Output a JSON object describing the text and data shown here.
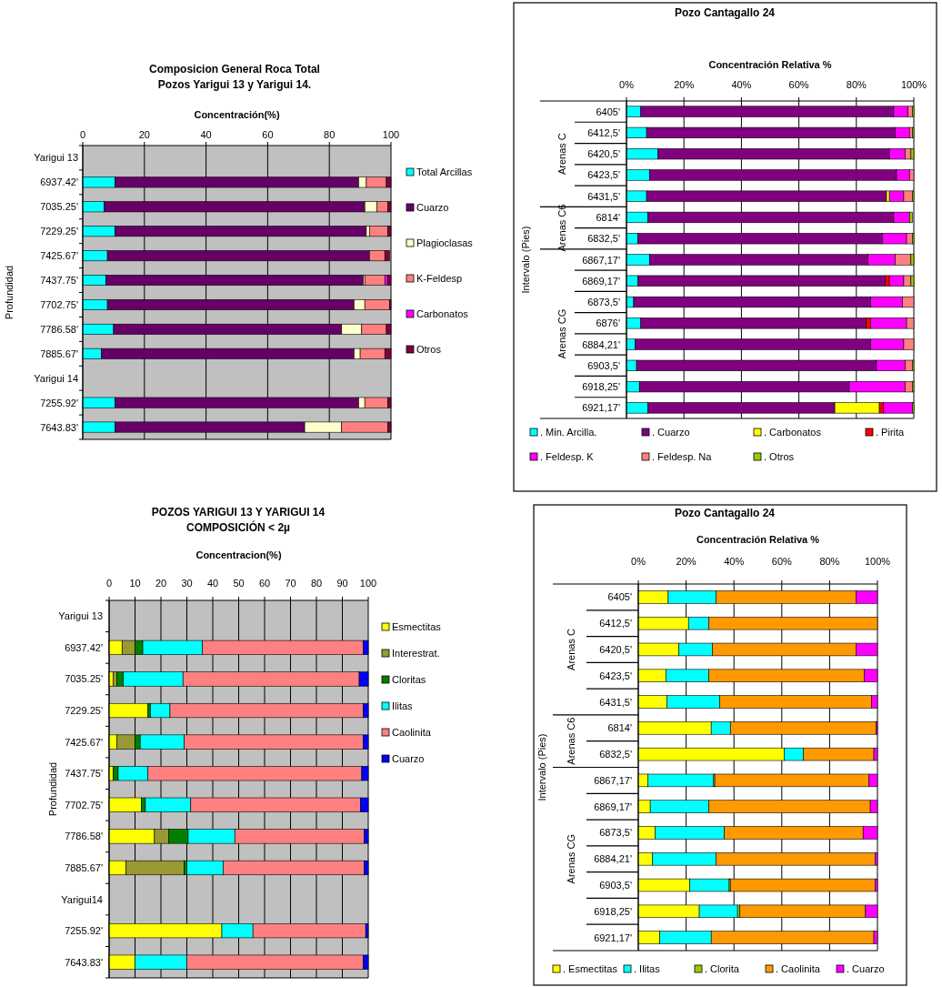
{
  "chart_data": [
    {
      "type": "bar",
      "orientation": "horizontal",
      "stacked": true,
      "title": "Composicion General Roca Total",
      "subtitle": "Pozos Yarigui 13 y Yarigui 14.",
      "xlabel": "Concentración(%)",
      "ylabel": "Profundidad",
      "categories": [
        "Yarigui 13",
        "6937.42'",
        "7035.25'",
        "7229.25'",
        "7425.67'",
        "7437.75'",
        "7702.75'",
        "7786.58'",
        "7885.67'",
        "Yarigui 14",
        "7255.92'",
        "7643.83'"
      ],
      "xlim": [
        0,
        100
      ],
      "xticks": [
        0,
        20,
        40,
        60,
        80,
        100
      ],
      "grid": "x",
      "legend": "right",
      "series": [
        {
          "name": "Total Arcillas",
          "color": "#00ffff",
          "values": [
            null,
            10.5,
            7,
            10.5,
            8,
            7.5,
            8,
            10,
            6,
            null,
            10.5,
            10.5
          ]
        },
        {
          "name": "Cuarzo",
          "color": "#660066",
          "values": [
            null,
            79,
            84.5,
            81.5,
            85,
            83.5,
            80,
            74,
            82,
            null,
            79,
            61.5
          ]
        },
        {
          "name": "Plagioclasas",
          "color": "#ffffcc",
          "values": [
            null,
            2.5,
            4,
            1,
            0,
            0.5,
            3.5,
            6.5,
            2,
            null,
            2,
            12
          ]
        },
        {
          "name": "K-Feldesp",
          "color": "#ff8080",
          "values": [
            null,
            6.5,
            3.5,
            6,
            5,
            6.5,
            8,
            8,
            8,
            null,
            7.5,
            15
          ]
        },
        {
          "name": "Carbonatos",
          "color": "#ff00ff",
          "values": [
            null,
            0,
            0,
            0,
            0,
            1,
            0,
            0,
            0,
            null,
            0,
            0
          ]
        },
        {
          "name": "Otros",
          "color": "#800040",
          "values": [
            null,
            1.5,
            1,
            1,
            1.5,
            1,
            0.5,
            1.5,
            2,
            null,
            1,
            1
          ]
        }
      ]
    },
    {
      "type": "bar",
      "orientation": "horizontal",
      "stacked": true,
      "title": "Pozo Cantagallo 24",
      "xlabel": "Concentración Relativa %",
      "ylabel": "Intervalo (Pies)",
      "categories": [
        "6405'",
        "6412,5'",
        "6420,5'",
        "6423,5'",
        "6431,5'",
        "6814'",
        "6832,5'",
        "6867,17'",
        "6869,17'",
        "6873,5'",
        "6876'",
        "6884,21'",
        "6903,5'",
        "6918,25'",
        "6921,17'"
      ],
      "xlim": [
        0,
        100
      ],
      "xticks": [
        {
          "value": 0,
          "label": "0%"
        },
        {
          "value": 20,
          "label": "20%"
        },
        {
          "value": 40,
          "label": "40%"
        },
        {
          "value": 60,
          "label": "60%"
        },
        {
          "value": 80,
          "label": "80%"
        },
        {
          "value": 100,
          "label": "100%"
        }
      ],
      "grid": "x",
      "legend": "bottom",
      "annotations": [
        "Arenas C",
        "Arenas C6",
        "Arenas CG"
      ],
      "series": [
        {
          "name": ". Min. Arcilla.",
          "color": "#00ffff",
          "values": [
            5,
            7,
            11,
            8,
            7,
            7.5,
            4,
            8,
            4,
            2.5,
            5,
            3,
            3.5,
            4.5,
            7.5
          ]
        },
        {
          "name": ". Cuarzo",
          "color": "#800080",
          "values": [
            88,
            86.5,
            80.5,
            86,
            83.5,
            85.5,
            85,
            76,
            86,
            82.5,
            78.5,
            82,
            83.5,
            73,
            65
          ]
        },
        {
          "name": ". Carbonatos",
          "color": "#ffff00",
          "values": [
            0,
            0,
            0,
            0,
            1,
            0,
            0,
            0,
            0,
            0,
            0,
            0,
            0,
            0,
            15.5
          ]
        },
        {
          "name": ". Pirita",
          "color": "#ff0000",
          "values": [
            0,
            0,
            0,
            0,
            0,
            0,
            0,
            0,
            1.5,
            0,
            1.5,
            0,
            0,
            0,
            1.5
          ]
        },
        {
          "name": ". Feldesp. K",
          "color": "#ff00ff",
          "values": [
            5,
            5,
            5.5,
            4.5,
            5,
            5.5,
            8.5,
            9.5,
            5,
            11,
            12.5,
            11.5,
            10,
            19.5,
            10
          ]
        },
        {
          "name": ". Feldesp. Na",
          "color": "#ff8080",
          "values": [
            1.5,
            1,
            2,
            1.5,
            3,
            0,
            2,
            5.5,
            2.5,
            4,
            2.5,
            3.5,
            2.5,
            2.5,
            0
          ]
        },
        {
          "name": ". Otros",
          "color": "#99cc00",
          "values": [
            0.5,
            0.5,
            1,
            0,
            0.5,
            1,
            0.5,
            1,
            1,
            0,
            0,
            0,
            0.5,
            0.5,
            0.5
          ]
        }
      ]
    },
    {
      "type": "bar",
      "orientation": "horizontal",
      "stacked": true,
      "title": "POZOS YARIGUI 13 Y YARIGUI 14",
      "subtitle": "COMPOSICIÓN < 2µ",
      "xlabel": "Concentracion(%)",
      "ylabel": "Profundidad",
      "categories": [
        "Yarigui 13",
        "6937.42'",
        "7035.25'",
        "7229.25'",
        "7425.67'",
        "7437.75'",
        "7702.75'",
        "7786.58'",
        "7885.67'",
        "Yarigui14",
        "7255.92'",
        "7643.83'"
      ],
      "xlim": [
        0,
        100
      ],
      "xticks": [
        0,
        10,
        20,
        30,
        40,
        50,
        60,
        70,
        80,
        90,
        100
      ],
      "grid": "x",
      "legend": "right",
      "series": [
        {
          "name": "Esmectitas",
          "color": "#ffff00",
          "values": [
            null,
            5,
            1.5,
            15,
            3,
            1.5,
            12.5,
            17.5,
            6.5,
            null,
            43.5,
            10
          ]
        },
        {
          "name": "Interestrat.",
          "color": "#999933",
          "values": [
            null,
            5,
            1.5,
            0,
            7,
            0,
            0,
            5.5,
            22.5,
            null,
            0,
            0
          ]
        },
        {
          "name": "Cloritas",
          "color": "#008000",
          "values": [
            null,
            3,
            2.5,
            1,
            2,
            2,
            1.5,
            7.5,
            1,
            null,
            0,
            0
          ]
        },
        {
          "name": "Ilitas",
          "color": "#00ffff",
          "values": [
            null,
            23,
            23,
            7.5,
            17,
            11.5,
            17.5,
            18,
            14,
            null,
            12,
            20
          ]
        },
        {
          "name": "Caolinita",
          "color": "#ff8080",
          "values": [
            null,
            62,
            68,
            74.5,
            69,
            82.5,
            65.5,
            50,
            54.5,
            null,
            43.5,
            68
          ]
        },
        {
          "name": "Cuarzo",
          "color": "#0000ff",
          "values": [
            null,
            2,
            3.5,
            2,
            2,
            2.5,
            3,
            1.5,
            1.5,
            null,
            1,
            2
          ]
        }
      ]
    },
    {
      "type": "bar",
      "orientation": "horizontal",
      "stacked": true,
      "title": "Pozo Cantagallo 24",
      "xlabel": "Concentración Relativa %",
      "ylabel": "Intervalo (Pies)",
      "categories": [
        "6405'",
        "6412,5'",
        "6420,5'",
        "6423,5'",
        "6431,5'",
        "6814'",
        "6832,5'",
        "6867,17'",
        "6869,17'",
        "6873,5'",
        "6884,21'",
        "6903,5'",
        "6918,25'",
        "6921,17'"
      ],
      "xlim": [
        0,
        100
      ],
      "xticks": [
        {
          "value": 0,
          "label": "0%"
        },
        {
          "value": 20,
          "label": "20%"
        },
        {
          "value": 40,
          "label": "40%"
        },
        {
          "value": 60,
          "label": "60%"
        },
        {
          "value": 80,
          "label": "80%"
        },
        {
          "value": 100,
          "label": "100%"
        }
      ],
      "grid": "x",
      "legend": "bottom",
      "annotations": [
        "Arenas C",
        "Arenas C6",
        "Arenas CG"
      ],
      "series": [
        {
          "name": ". Esmectitas",
          "color": "#ffff00",
          "values": [
            12.5,
            21,
            17,
            11.5,
            12,
            30.5,
            61,
            4,
            5,
            7,
            6,
            21.5,
            25.5,
            9
          ]
        },
        {
          "name": ". Ilitas",
          "color": "#00ffff",
          "values": [
            20,
            8.5,
            14,
            18,
            22,
            8,
            8,
            27.5,
            24.5,
            29,
            26.5,
            16.5,
            16,
            21.5
          ]
        },
        {
          "name": ". Clorita",
          "color": "#99cc00",
          "values": [
            0,
            0,
            0,
            0,
            0,
            0,
            0,
            0.5,
            0,
            0,
            0,
            0.5,
            1,
            0
          ]
        },
        {
          "name": ". Caolinita",
          "color": "#ff9900",
          "values": [
            58.5,
            70.5,
            60,
            65,
            63.5,
            61,
            29.5,
            64.5,
            67.5,
            58,
            66.5,
            60.5,
            52.5,
            68
          ]
        },
        {
          "name": ". Cuarzo",
          "color": "#ff00ff",
          "values": [
            9,
            0,
            9,
            5.5,
            2.5,
            0.5,
            1.5,
            3.5,
            3,
            6,
            1,
            1,
            5,
            1.5
          ]
        }
      ]
    }
  ]
}
